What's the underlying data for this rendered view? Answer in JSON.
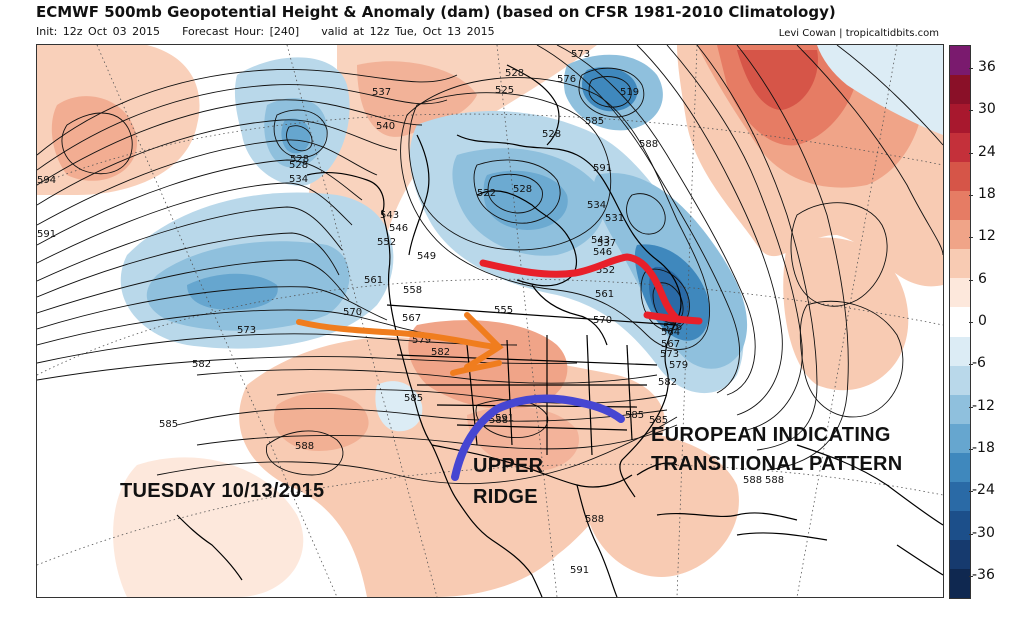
{
  "header": {
    "title": "ECMWF 500mb Geopotential Height & Anomaly (dam) (based on CFSR 1981-2010 Climatology)",
    "init": "Init: 12z Oct 03 2015",
    "forecast_hour": "Forecast Hour: [240]",
    "valid": "valid at 12z Tue, Oct 13 2015",
    "credit": "Levi Cowan | tropicaltidbits.com"
  },
  "colorbar": {
    "ticks": [
      "36",
      "30",
      "24",
      "18",
      "12",
      "6",
      "0",
      "-6",
      "-12",
      "-18",
      "-24",
      "-30",
      "-36"
    ],
    "colors": [
      "#7a1a6e",
      "#8a1028",
      "#a8182e",
      "#c4303a",
      "#d65548",
      "#e67c64",
      "#f0a488",
      "#f8cbb3",
      "#fde8dc",
      "#ffffff",
      "#dcecf5",
      "#b9d8ea",
      "#8fc0dd",
      "#66a6cf",
      "#3f88bd",
      "#2a6aa6",
      "#1c4f8a",
      "#163a6e",
      "#0f2850"
    ]
  },
  "contour_labels": [
    "528",
    "537",
    "540",
    "528",
    "534",
    "594",
    "591",
    "573",
    "582",
    "585",
    "588",
    "543",
    "546",
    "552",
    "549",
    "561",
    "558",
    "570",
    "567",
    "579",
    "582",
    "585",
    "588",
    "591",
    "591",
    "585",
    "588",
    "528",
    "525",
    "519",
    "522",
    "528",
    "528",
    "531",
    "534",
    "537",
    "543",
    "546",
    "552",
    "555",
    "561",
    "570",
    "564",
    "567",
    "573",
    "576",
    "579",
    "582",
    "585",
    "573",
    "576",
    "585",
    "588",
    "591",
    "588",
    "588"
  ],
  "annotations": {
    "european_line1": "EUROPEAN INDICATING",
    "european_line2": "TRANSITIONAL PATTERN",
    "upper": "UPPER",
    "ridge": "RIDGE",
    "date": "TUESDAY 10/13/2015"
  },
  "arrow_colors": {
    "orange": "#f07d1e",
    "red": "#e8202a",
    "blue": "#4646d2"
  }
}
